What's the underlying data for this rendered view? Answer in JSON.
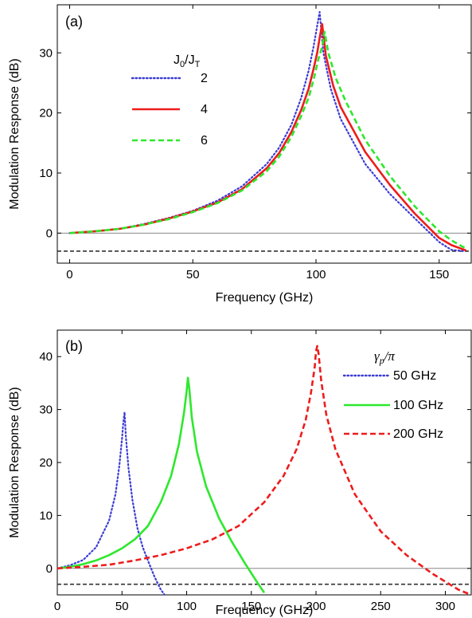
{
  "chart_data": [
    {
      "type": "line",
      "panel_label": "(a)",
      "xlabel": "Frequency (GHz)",
      "ylabel": "Modulation Response (dB)",
      "xlim": [
        -5,
        163
      ],
      "ylim": [
        -5,
        38
      ],
      "xticks": [
        0,
        50,
        100,
        150
      ],
      "yticks": [
        0,
        10,
        20,
        30
      ],
      "legend_title": "J0/JT",
      "legend_title_main": "J",
      "legend_title_sub1": "0",
      "legend_title_sep": "/J",
      "legend_title_sub2": "T",
      "legend_position": "upper-left",
      "reference_lines": [
        {
          "y": 0,
          "style": "solid",
          "color": "#888888"
        },
        {
          "y": -3,
          "style": "dashed",
          "color": "#333333"
        }
      ],
      "series": [
        {
          "name": "2",
          "color": "#3b3bd6",
          "style": "dotted",
          "x": [
            0,
            10,
            20,
            30,
            40,
            50,
            60,
            70,
            80,
            85,
            90,
            94,
            97,
            99,
            100.5,
            101.5,
            103,
            106,
            110,
            120,
            130,
            140,
            150,
            155,
            160
          ],
          "y": [
            0,
            0.3,
            0.7,
            1.5,
            2.5,
            3.7,
            5.4,
            7.8,
            11.5,
            14.2,
            18.0,
            22.5,
            27.0,
            31.0,
            34.5,
            36.8,
            30.0,
            24.0,
            19.0,
            11.5,
            6.5,
            2.5,
            -1.5,
            -2.8,
            -3.0
          ]
        },
        {
          "name": "4",
          "color": "#ee1c1c",
          "style": "solid",
          "x": [
            0,
            10,
            20,
            30,
            40,
            50,
            60,
            70,
            80,
            85,
            90,
            94,
            97,
            99,
            100.5,
            101.5,
            102.5,
            104,
            107,
            110,
            120,
            130,
            140,
            150,
            155,
            161
          ],
          "y": [
            0,
            0.3,
            0.7,
            1.4,
            2.4,
            3.6,
            5.1,
            7.3,
            10.8,
            13.3,
            16.8,
            20.5,
            24.0,
            27.3,
            30.0,
            32.5,
            34.8,
            29.5,
            24.5,
            21.0,
            13.5,
            8.0,
            3.3,
            -0.8,
            -2.0,
            -2.9
          ]
        },
        {
          "name": "6",
          "color": "#2de82d",
          "style": "dashed",
          "x": [
            0,
            10,
            20,
            30,
            40,
            50,
            60,
            70,
            80,
            85,
            90,
            94,
            97,
            99,
            101,
            102.5,
            103.5,
            105,
            108,
            112,
            120,
            130,
            140,
            150,
            155,
            161
          ],
          "y": [
            0,
            0.3,
            0.7,
            1.4,
            2.3,
            3.5,
            5.0,
            7.1,
            10.3,
            12.7,
            16.0,
            19.5,
            22.5,
            25.5,
            29.0,
            31.0,
            33.5,
            30.0,
            25.8,
            22.0,
            15.5,
            9.5,
            4.5,
            0.3,
            -1.2,
            -2.6
          ]
        }
      ]
    },
    {
      "type": "line",
      "panel_label": "(b)",
      "xlabel": "Frequency (GHz)",
      "ylabel": "Modulation Response (dB)",
      "xlim": [
        0,
        320
      ],
      "ylim": [
        -5,
        45
      ],
      "xticks": [
        0,
        50,
        100,
        150,
        200,
        250,
        300
      ],
      "yticks": [
        0,
        10,
        20,
        30,
        40
      ],
      "legend_title": "γp/π",
      "legend_title_main": "γ",
      "legend_title_sub": "p",
      "legend_title_rest": "/π",
      "legend_position": "upper-right",
      "reference_lines": [
        {
          "y": 0,
          "style": "solid",
          "color": "#888888"
        },
        {
          "y": -3,
          "style": "dashed",
          "color": "#333333"
        }
      ],
      "series": [
        {
          "name": "50 GHz",
          "color": "#3b3bd6",
          "style": "dotted",
          "x": [
            0,
            10,
            20,
            30,
            40,
            45,
            48,
            50,
            51,
            52,
            53,
            55,
            58,
            62,
            66,
            70,
            75,
            80,
            83
          ],
          "y": [
            0,
            0.6,
            1.6,
            4.0,
            9.0,
            14.0,
            19.5,
            24.5,
            27.5,
            29.5,
            25.0,
            19.0,
            13.0,
            7.5,
            4.0,
            1.5,
            -1.5,
            -4.0,
            -5.0
          ]
        },
        {
          "name": "100 GHz",
          "color": "#2de82d",
          "style": "solid",
          "x": [
            0,
            10,
            20,
            30,
            40,
            50,
            60,
            70,
            80,
            88,
            94,
            98,
            100,
            101,
            102,
            104,
            108,
            115,
            125,
            135,
            145,
            155,
            160
          ],
          "y": [
            0,
            0.3,
            0.8,
            1.5,
            2.5,
            3.8,
            5.5,
            8.0,
            12.5,
            17.5,
            23.5,
            29.5,
            33.5,
            36.0,
            34.0,
            28.5,
            22.0,
            15.5,
            9.5,
            5.0,
            1.0,
            -2.8,
            -4.6
          ]
        },
        {
          "name": "200 GHz",
          "color": "#ee1c1c",
          "style": "dashed",
          "x": [
            0,
            20,
            40,
            60,
            80,
            100,
            120,
            140,
            160,
            175,
            185,
            192,
            196,
            199,
            200,
            201,
            202,
            204,
            208,
            215,
            230,
            250,
            270,
            290,
            300,
            310,
            320
          ],
          "y": [
            0,
            0.3,
            0.7,
            1.5,
            2.5,
            3.8,
            5.5,
            8.0,
            12.5,
            17.5,
            22.5,
            28.0,
            33.0,
            38.0,
            41.0,
            42.0,
            40.5,
            35.5,
            29.0,
            22.5,
            14.0,
            7.0,
            2.5,
            -1.0,
            -2.5,
            -4.0,
            -5.0
          ]
        }
      ]
    }
  ]
}
